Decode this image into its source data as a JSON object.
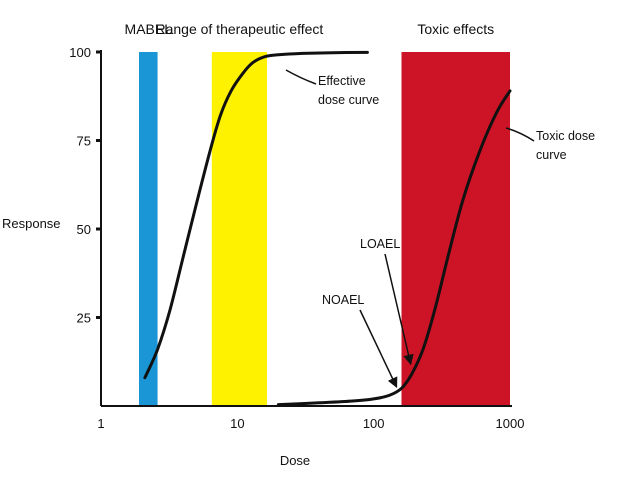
{
  "chart_data": {
    "type": "line",
    "x_scale": "log",
    "xlim": [
      1,
      1000
    ],
    "ylim": [
      0,
      100
    ],
    "xlabel": "Dose",
    "ylabel": "Response",
    "x_ticks": [
      1,
      10,
      100,
      1000
    ],
    "x_tick_labels": [
      "1",
      "10",
      "100",
      "1000"
    ],
    "y_ticks": [
      25,
      50,
      75,
      100
    ],
    "y_tick_labels": [
      "25",
      "50",
      "75",
      "100"
    ],
    "bands": [
      {
        "label": "MABEL",
        "x_range": [
          1.9,
          2.6
        ],
        "color": "#1a96d6"
      },
      {
        "label": "Range of therapeutic effect",
        "x_range": [
          6.5,
          16.5
        ],
        "color": "#fff200"
      },
      {
        "label": "Toxic effects",
        "x_range": [
          160,
          1000
        ],
        "color": "#cc1426"
      }
    ],
    "series": [
      {
        "name": "Effective dose curve",
        "label_lines": [
          "Effective",
          "dose curve"
        ],
        "x": [
          2.1,
          2.6,
          3.2,
          4.0,
          5.0,
          6.3,
          7.5,
          9.0,
          11.0,
          13.0,
          16.0,
          20.0,
          30.0,
          50.0,
          90.0
        ],
        "y": [
          8,
          16,
          27,
          42,
          57,
          72,
          82,
          89,
          94,
          97,
          98.7,
          99.2,
          99.6,
          99.8,
          99.9
        ]
      },
      {
        "name": "Toxic dose curve",
        "label_lines": [
          "Toxic dose",
          "curve"
        ],
        "x": [
          20,
          40,
          70,
          100,
          130,
          160,
          190,
          230,
          280,
          350,
          450,
          600,
          800,
          1000
        ],
        "y": [
          0.4,
          0.9,
          1.4,
          2.0,
          3.0,
          5.0,
          9.0,
          16.0,
          27.0,
          42.0,
          58.0,
          72.0,
          83.0,
          89.0
        ]
      }
    ],
    "annotations": [
      {
        "text": "LOAEL",
        "points_to": [
          190,
          9
        ]
      },
      {
        "text": "NOAEL",
        "points_to": [
          155,
          4.5
        ]
      }
    ]
  }
}
